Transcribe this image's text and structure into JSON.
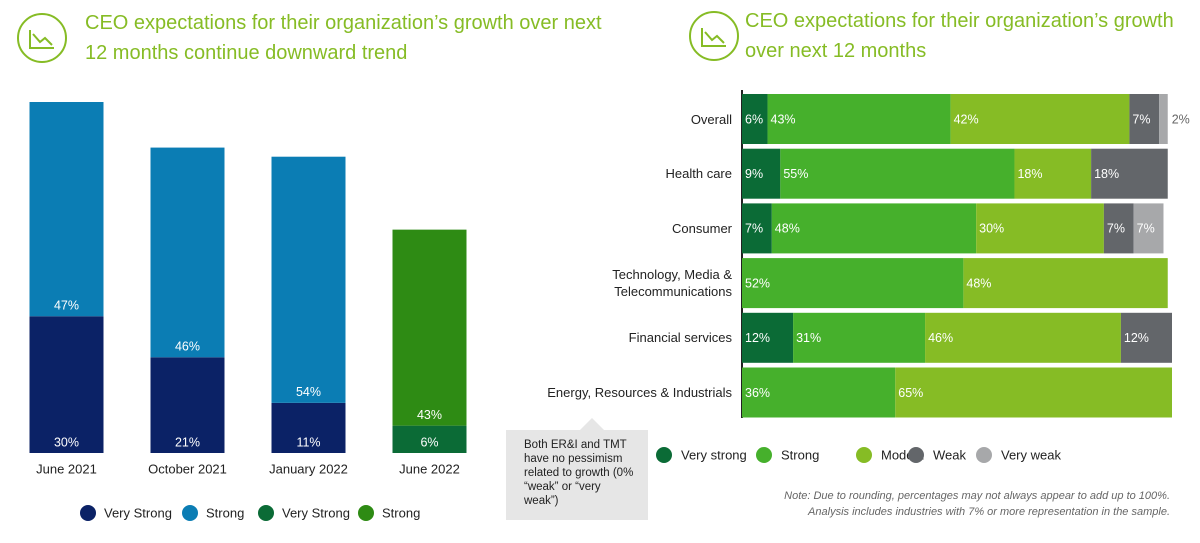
{
  "chart_data": [
    {
      "type": "bar",
      "orientation": "vertical",
      "title": "CEO expectations for their organization’s growth over next 12 months continue downward trend",
      "categories": [
        "June 2021",
        "October 2021",
        "January 2022",
        "June 2022"
      ],
      "series": [
        {
          "name": "Very Strong",
          "color": "#0b2266",
          "values": [
            30,
            21,
            11,
            null
          ],
          "value_labels": [
            "30%",
            "21%",
            "11%",
            null
          ]
        },
        {
          "name": "Strong",
          "color": "#0b7db4",
          "values": [
            47,
            46,
            54,
            null
          ],
          "value_labels": [
            "47%",
            "46%",
            "54%",
            null
          ]
        },
        {
          "name": "Very Strong",
          "color": "#0b6b36",
          "values": [
            null,
            null,
            null,
            6
          ],
          "value_labels": [
            null,
            null,
            null,
            "6%"
          ]
        },
        {
          "name": "Strong",
          "color": "#2e8b14",
          "values": [
            null,
            null,
            null,
            43
          ],
          "value_labels": [
            null,
            null,
            null,
            "43%"
          ]
        }
      ]
    },
    {
      "type": "bar",
      "orientation": "horizontal",
      "title": "CEO expectations for their organization’s growth over next 12 months",
      "categories": [
        "Overall",
        "Health care",
        "Consumer",
        "Technology, Media & Telecommunications",
        "Financial services",
        "Energy, Resources & Industrials"
      ],
      "series": [
        {
          "name": "Very strong",
          "color": "#0b6b36",
          "values": [
            6,
            9,
            7,
            null,
            12,
            null
          ],
          "value_labels": [
            "6%",
            "9%",
            "7%",
            null,
            "12%",
            null
          ]
        },
        {
          "name": "Strong",
          "color": "#46b02c",
          "values": [
            43,
            55,
            48,
            52,
            31,
            36
          ],
          "value_labels": [
            "43%",
            "55%",
            "48%",
            "52%",
            "31%",
            "36%"
          ]
        },
        {
          "name": "Modest",
          "color": "#86bc25",
          "values": [
            42,
            18,
            30,
            48,
            46,
            65
          ],
          "value_labels": [
            "42%",
            "18%",
            "30%",
            "48%",
            "46%",
            "65%"
          ]
        },
        {
          "name": "Weak",
          "color": "#63666a",
          "values": [
            7,
            18,
            7,
            null,
            12,
            null
          ],
          "value_labels": [
            "7%",
            "18%",
            "7%",
            null,
            "12%",
            null
          ]
        },
        {
          "name": "Very weak",
          "color": "#a7a8aa",
          "values": [
            2,
            null,
            7,
            null,
            null,
            null
          ],
          "value_labels": [
            "2%",
            null,
            "7%",
            null,
            null,
            null
          ]
        }
      ],
      "annotation": "Both ER&I and TMT have no pessimism related to growth (0% “weak” or “very weak”)",
      "note": [
        "Note: Due to rounding, percentages may not always appear to add up to 100%.",
        "Analysis includes industries with 7% or more representation in the sample."
      ]
    }
  ]
}
